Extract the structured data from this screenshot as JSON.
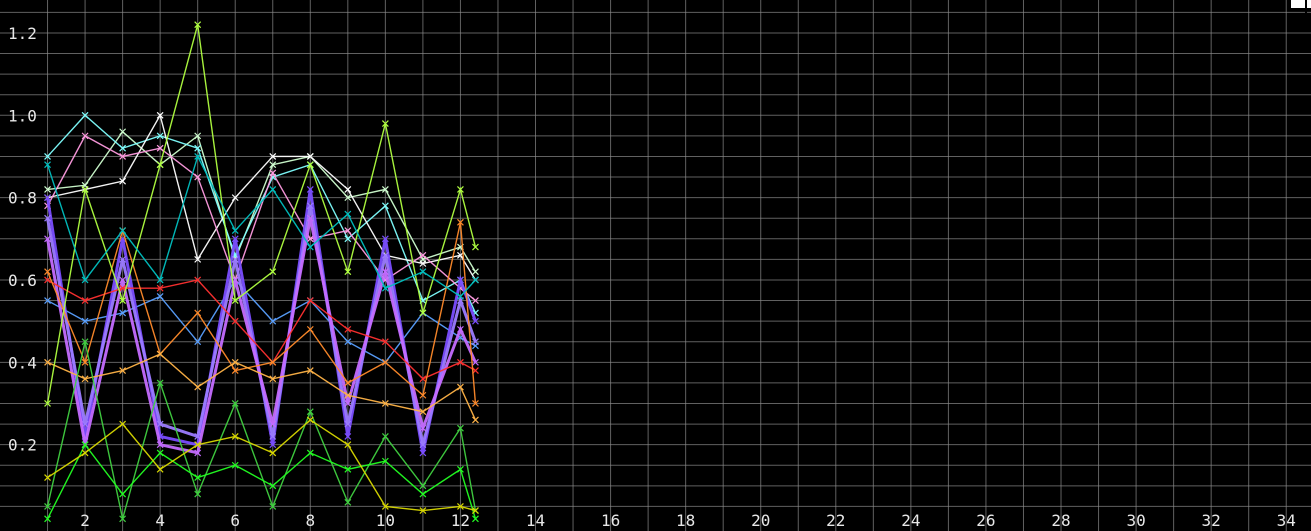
{
  "chart_data": {
    "type": "line",
    "title": "",
    "xlabel": "",
    "ylabel": "",
    "xlim": [
      0,
      34.5
    ],
    "ylim": [
      0,
      1.28
    ],
    "grid": true,
    "background": "#000000",
    "grid_color": "#8a8a8a",
    "x_ticks": [
      2,
      4,
      6,
      8,
      10,
      12,
      14,
      16,
      18,
      20,
      22,
      24,
      26,
      28,
      30,
      32,
      34
    ],
    "y_ticks": [
      0.2,
      0.4,
      0.6,
      0.8,
      1.0,
      1.2
    ],
    "x_tick_labels": [
      "2",
      "4",
      "6",
      "8",
      "10",
      "12",
      "14",
      "16",
      "18",
      "20",
      "22",
      "24",
      "26",
      "28",
      "30",
      "32",
      "34"
    ],
    "y_tick_labels": [
      "0.2",
      "0.4",
      "0.6",
      "0.8",
      "1.0",
      "1.2"
    ],
    "x": [
      1,
      2,
      3,
      4,
      5,
      6,
      7,
      8,
      9,
      10,
      11,
      12,
      12.4
    ],
    "series": [
      {
        "color": "#d0ffd0",
        "values": [
          0.82,
          0.83,
          0.96,
          0.88,
          0.95,
          0.65,
          0.88,
          0.9,
          0.8,
          0.82,
          0.65,
          0.68,
          0.62
        ]
      },
      {
        "color": "#80ffff",
        "values": [
          0.9,
          1.0,
          0.92,
          0.95,
          0.92,
          0.66,
          0.85,
          0.88,
          0.7,
          0.78,
          0.55,
          0.6,
          0.52
        ]
      },
      {
        "color": "#ffffff",
        "values": [
          0.8,
          0.82,
          0.84,
          1.0,
          0.65,
          0.8,
          0.9,
          0.9,
          0.82,
          0.66,
          0.64,
          0.66,
          0.6
        ]
      },
      {
        "color": "#ff9be0",
        "values": [
          0.78,
          0.95,
          0.9,
          0.92,
          0.85,
          0.6,
          0.86,
          0.7,
          0.72,
          0.6,
          0.66,
          0.58,
          0.55
        ]
      },
      {
        "color": "#5aa0ff",
        "values": [
          0.55,
          0.5,
          0.52,
          0.56,
          0.45,
          0.6,
          0.5,
          0.55,
          0.45,
          0.4,
          0.52,
          0.46,
          0.44
        ]
      },
      {
        "color": "#7a4dff",
        "values": [
          0.8,
          0.22,
          0.7,
          0.22,
          0.2,
          0.7,
          0.2,
          0.82,
          0.22,
          0.7,
          0.18,
          0.6,
          0.5
        ]
      },
      {
        "color": "#9b7bff",
        "values": [
          0.75,
          0.25,
          0.65,
          0.25,
          0.22,
          0.65,
          0.22,
          0.78,
          0.25,
          0.66,
          0.2,
          0.55,
          0.45
        ]
      },
      {
        "color": "#c46bff",
        "values": [
          0.7,
          0.2,
          0.6,
          0.2,
          0.18,
          0.6,
          0.25,
          0.75,
          0.3,
          0.62,
          0.24,
          0.48,
          0.4
        ]
      },
      {
        "color": "#ff3030",
        "values": [
          0.6,
          0.55,
          0.58,
          0.58,
          0.6,
          0.5,
          0.4,
          0.55,
          0.48,
          0.45,
          0.36,
          0.4,
          0.38
        ]
      },
      {
        "color": "#ff8a2a",
        "values": [
          0.62,
          0.4,
          0.72,
          0.42,
          0.52,
          0.38,
          0.4,
          0.48,
          0.35,
          0.4,
          0.32,
          0.74,
          0.3
        ]
      },
      {
        "color": "#ffb347",
        "values": [
          0.4,
          0.36,
          0.38,
          0.42,
          0.34,
          0.4,
          0.36,
          0.38,
          0.32,
          0.3,
          0.28,
          0.34,
          0.26
        ]
      },
      {
        "color": "#b0ff40",
        "values": [
          0.3,
          0.82,
          0.55,
          0.88,
          1.22,
          0.55,
          0.62,
          0.88,
          0.62,
          0.98,
          0.52,
          0.82,
          0.68
        ]
      },
      {
        "color": "#40d040",
        "values": [
          0.05,
          0.45,
          0.02,
          0.35,
          0.08,
          0.3,
          0.05,
          0.28,
          0.06,
          0.22,
          0.1,
          0.24,
          0.04
        ]
      },
      {
        "color": "#22ff22",
        "values": [
          0.02,
          0.2,
          0.08,
          0.18,
          0.12,
          0.15,
          0.1,
          0.18,
          0.14,
          0.16,
          0.08,
          0.14,
          0.02
        ]
      },
      {
        "color": "#d8d800",
        "values": [
          0.12,
          0.18,
          0.25,
          0.14,
          0.2,
          0.22,
          0.18,
          0.26,
          0.2,
          0.05,
          0.04,
          0.05,
          0.04
        ]
      },
      {
        "color": "#00c0c0",
        "values": [
          0.88,
          0.6,
          0.72,
          0.6,
          0.9,
          0.72,
          0.82,
          0.68,
          0.76,
          0.58,
          0.62,
          0.56,
          0.6
        ]
      }
    ]
  }
}
